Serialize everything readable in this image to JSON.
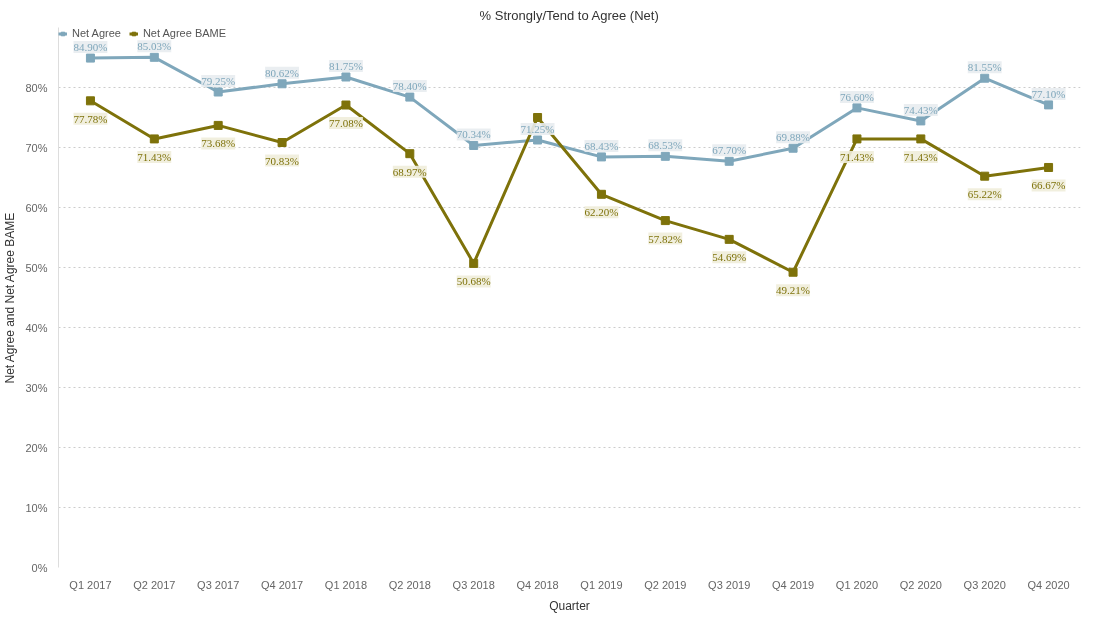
{
  "chart_data": {
    "type": "line",
    "title": "% Strongly/Tend to Agree (Net)",
    "xlabel": "Quarter",
    "ylabel": "Net Agree and Net Agree BAME",
    "categories": [
      "Q1 2017",
      "Q2 2017",
      "Q3 2017",
      "Q4 2017",
      "Q1 2018",
      "Q2 2018",
      "Q3 2018",
      "Q4 2018",
      "Q1 2019",
      "Q2 2019",
      "Q3 2019",
      "Q4 2019",
      "Q1 2020",
      "Q2 2020",
      "Q3 2020",
      "Q4 2020"
    ],
    "series": [
      {
        "name": "Net Agree",
        "color": "#7fa7bb",
        "values": [
          84.9,
          85.03,
          79.25,
          80.62,
          81.75,
          78.4,
          70.34,
          71.25,
          68.43,
          68.53,
          67.7,
          69.88,
          76.6,
          74.43,
          81.55,
          77.1
        ],
        "value_labels": [
          "84.90%",
          "85.03%",
          "79.25%",
          "80.62%",
          "81.75%",
          "78.40%",
          "70.34%",
          "71.25%",
          "68.43%",
          "68.53%",
          "67.70%",
          "69.88%",
          "76.60%",
          "74.43%",
          "81.55%",
          "77.10%"
        ]
      },
      {
        "name": "Net Agree BAME",
        "color": "#7e720a",
        "values": [
          77.78,
          71.43,
          73.68,
          70.83,
          77.08,
          68.97,
          50.68,
          75.0,
          62.2,
          57.82,
          54.69,
          49.21,
          71.43,
          71.43,
          65.22,
          66.67
        ],
        "value_labels": [
          "77.78%",
          "71.43%",
          "73.68%",
          "70.83%",
          "77.08%",
          "68.97%",
          "50.68%",
          null,
          "62.20%",
          "57.82%",
          "54.69%",
          "49.21%",
          "71.43%",
          "71.43%",
          "65.22%",
          "66.67%"
        ]
      }
    ],
    "ylim": [
      0,
      90
    ],
    "yticks": [
      {
        "value": 0,
        "label": "0%"
      },
      {
        "value": 10,
        "label": "10%"
      },
      {
        "value": 20,
        "label": "20%"
      },
      {
        "value": 30,
        "label": "30%"
      },
      {
        "value": 40,
        "label": "40%"
      },
      {
        "value": 50,
        "label": "50%"
      },
      {
        "value": 60,
        "label": "60%"
      },
      {
        "value": 70,
        "label": "70%"
      },
      {
        "value": 80,
        "label": "80%"
      }
    ],
    "grid": "y",
    "legend": "top left",
    "marker": "square",
    "line_style": "solid"
  }
}
